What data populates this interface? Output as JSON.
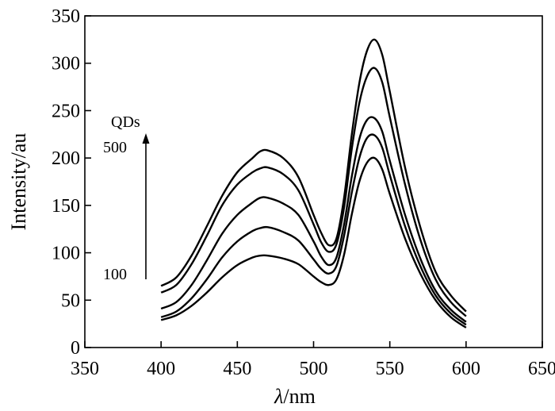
{
  "chart_data": {
    "type": "line",
    "xlabel": "λ/nm",
    "xlabel_italic": "λ",
    "xlabel_rest": "/nm",
    "ylabel": "Intensity/au",
    "xlim": [
      350,
      650
    ],
    "ylim": [
      0,
      350
    ],
    "xticks": [
      350,
      400,
      450,
      500,
      550,
      600,
      650
    ],
    "yticks": [
      0,
      50,
      100,
      150,
      200,
      250,
      300,
      350
    ],
    "grid": false,
    "annotations": {
      "arrow_label": "QDs",
      "arrow_top": "500",
      "arrow_bottom": "100"
    },
    "x": [
      400,
      410,
      420,
      430,
      440,
      450,
      460,
      465,
      470,
      480,
      490,
      500,
      505,
      510,
      515,
      520,
      525,
      530,
      535,
      540,
      545,
      550,
      560,
      570,
      580,
      590,
      600
    ],
    "series": [
      {
        "values": [
          29,
          34,
          44,
          58,
          74,
          87,
          95,
          97,
          97,
          94,
          88,
          75,
          69,
          66,
          72,
          98,
          140,
          175,
          195,
          200,
          188,
          162,
          115,
          78,
          50,
          32,
          21
        ]
      },
      {
        "values": [
          32,
          38,
          52,
          72,
          95,
          112,
          123,
          126,
          127,
          122,
          113,
          93,
          83,
          78,
          86,
          118,
          163,
          200,
          221,
          224,
          211,
          182,
          128,
          86,
          55,
          36,
          24
        ]
      },
      {
        "values": [
          41,
          48,
          66,
          92,
          120,
          140,
          153,
          158,
          158,
          152,
          140,
          112,
          96,
          87,
          95,
          130,
          180,
          220,
          240,
          242,
          228,
          197,
          140,
          94,
          60,
          40,
          27
        ]
      },
      {
        "values": [
          58,
          66,
          88,
          118,
          150,
          172,
          185,
          189,
          190,
          183,
          166,
          130,
          111,
          101,
          109,
          148,
          209,
          258,
          286,
          295,
          280,
          243,
          172,
          114,
          72,
          48,
          33
        ]
      },
      {
        "values": [
          65,
          74,
          97,
          128,
          160,
          185,
          200,
          207,
          208,
          200,
          180,
          140,
          121,
          108,
          115,
          158,
          224,
          279,
          313,
          325,
          309,
          270,
          190,
          127,
          80,
          55,
          38
        ]
      }
    ]
  }
}
